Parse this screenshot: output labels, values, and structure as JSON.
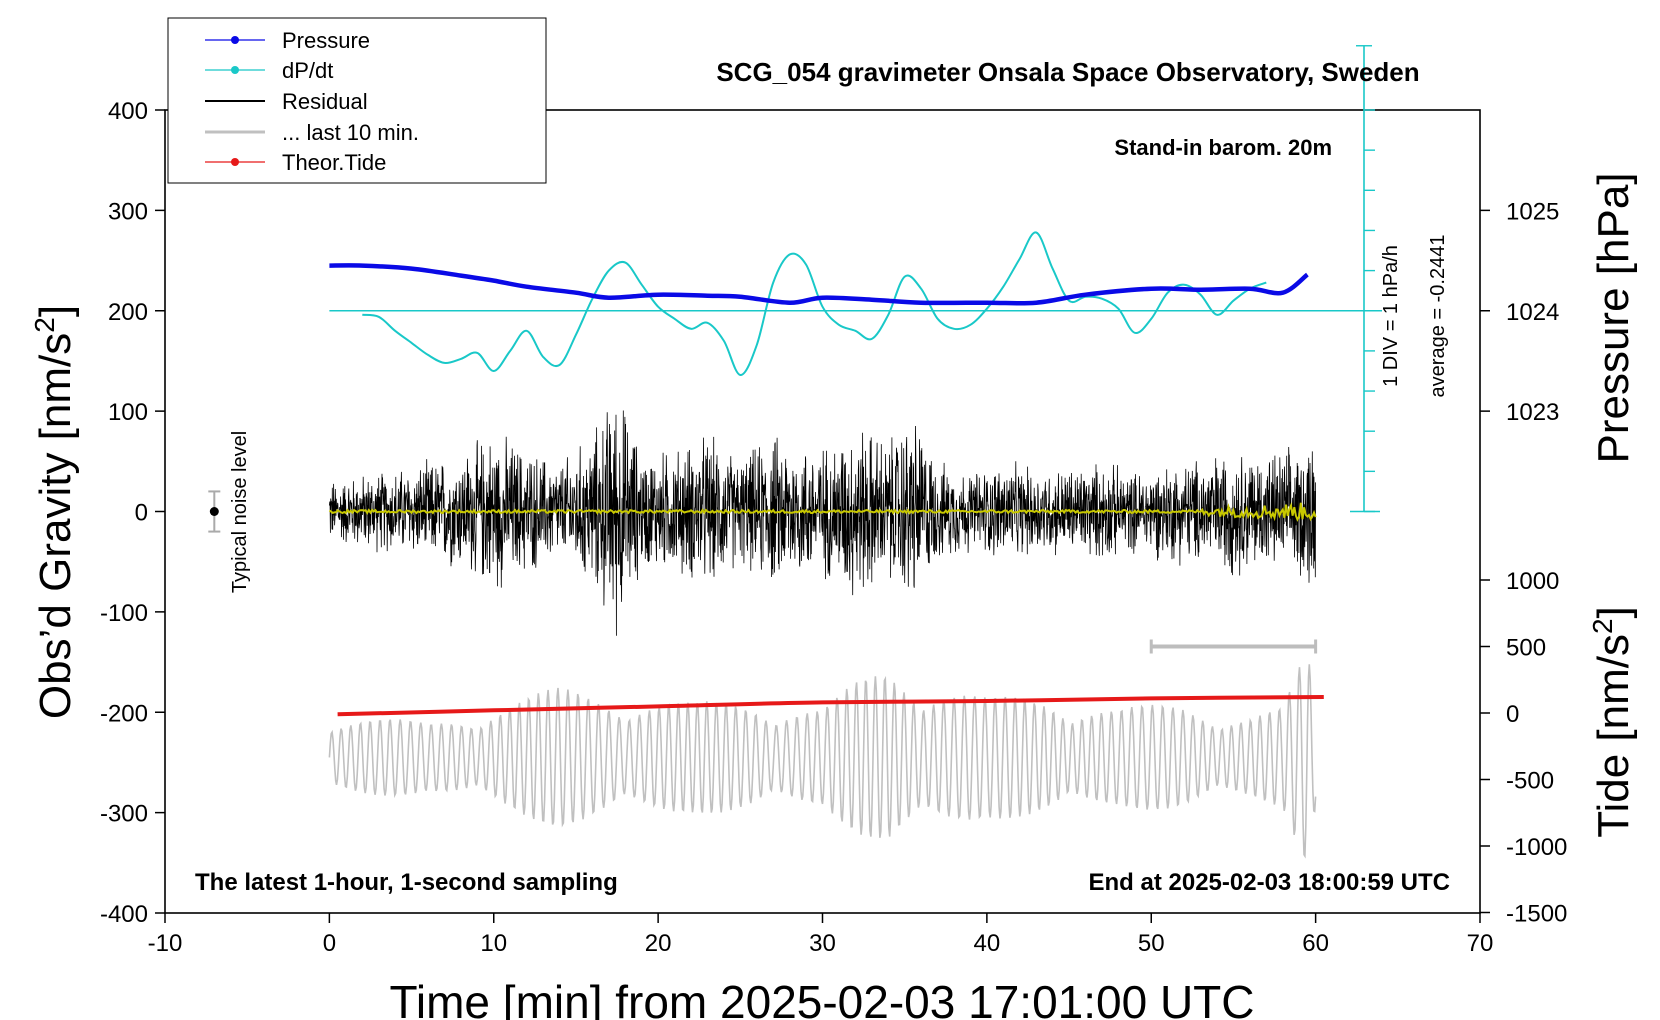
{
  "chart_data": {
    "type": "line",
    "title": "SCG_054 gravimeter Onsala Space Observatory, Sweden",
    "xlabel": "Time [min] from 2025-02-03 17:01:00 UTC",
    "ylabel_left": "Obs’d Gravity [nm/s",
    "ylabel_left_sup": "2",
    "ylabel_left_close": "]",
    "ylabel_right_pressure": "Pressure [hPa]",
    "ylabel_right_tide": "Tide [nm/s",
    "ylabel_right_tide_sup": "2",
    "ylabel_right_tide_close": "]",
    "xlim": [
      -10,
      70
    ],
    "ylim": [
      -400,
      400
    ],
    "x_ticks": [
      "-10",
      "0",
      "10",
      "20",
      "30",
      "40",
      "50",
      "60",
      "70"
    ],
    "y_ticks": [
      "400",
      "300",
      "200",
      "100",
      "0",
      "-100",
      "-200",
      "-300",
      "-400"
    ],
    "pressure_ticks": [
      "1025",
      "1024",
      "1023"
    ],
    "tide_ticks": [
      "1000",
      "500",
      "0",
      "-500",
      "-1000",
      "-1500"
    ],
    "annotations": {
      "baro": "Stand-in barom. 20m",
      "div": "1 DIV = 1 hPa/h",
      "average": "average = -0.2441",
      "noise": "Typical noise level",
      "sampling": "The latest 1-hour, 1-second sampling",
      "end": "End at 2025-02-03 18:00:59 UTC"
    },
    "legend": [
      "Pressure",
      "dP/dt",
      "Residual",
      "... last 10 min.",
      "Theor.Tide"
    ],
    "colors": {
      "pressure": "#0a0ae6",
      "dpdt": "#19c8c8",
      "residual": "#000000",
      "last10": "#c0c0c0",
      "tide": "#e61919",
      "mean": "#c8c800"
    },
    "series": {
      "pressure_hpa": {
        "x": [
          0,
          2,
          5,
          8,
          10,
          12,
          15,
          17,
          20,
          23,
          25,
          28,
          30,
          33,
          36,
          40,
          43,
          46,
          50,
          53,
          56,
          58,
          59.5
        ],
        "y": [
          1024.45,
          1024.45,
          1024.42,
          1024.35,
          1024.3,
          1024.24,
          1024.18,
          1024.13,
          1024.16,
          1024.15,
          1024.14,
          1024.08,
          1024.13,
          1024.11,
          1024.08,
          1024.08,
          1024.08,
          1024.16,
          1024.22,
          1024.21,
          1024.22,
          1024.18,
          1024.36
        ]
      },
      "dpdt_hpa_per_h": {
        "x": [
          2,
          3,
          4,
          5,
          6,
          7,
          8,
          9,
          10,
          11,
          12,
          13,
          14,
          15,
          16,
          17,
          18,
          19,
          20,
          21,
          22,
          23,
          24,
          25,
          26,
          27,
          28,
          29,
          30,
          31,
          32,
          33,
          34,
          35,
          36,
          37,
          38,
          39,
          40,
          41,
          42,
          43,
          44,
          45,
          46,
          47,
          48,
          49,
          50,
          51,
          52,
          53,
          54,
          55,
          56,
          57
        ],
        "y": [
          -0.1,
          -0.15,
          -0.5,
          -0.8,
          -1.1,
          -1.3,
          -1.2,
          -1.05,
          -1.5,
          -1.0,
          -0.5,
          -1.15,
          -1.35,
          -0.6,
          0.3,
          1.0,
          1.2,
          0.65,
          0.1,
          -0.2,
          -0.45,
          -0.3,
          -0.75,
          -1.6,
          -0.85,
          0.7,
          1.4,
          1.15,
          0.1,
          -0.35,
          -0.5,
          -0.7,
          -0.1,
          0.85,
          0.55,
          -0.2,
          -0.45,
          -0.35,
          0.05,
          0.6,
          1.3,
          1.95,
          1.05,
          0.25,
          0.35,
          0.3,
          0.05,
          -0.55,
          -0.2,
          0.45,
          0.65,
          0.4,
          -0.1,
          0.25,
          0.55,
          0.7
        ]
      },
      "residual_nm_s2": {
        "x_range": [
          0,
          60
        ],
        "envelope_x": [
          0,
          3,
          5,
          8,
          10,
          12,
          14,
          16,
          17.5,
          19,
          21,
          23,
          25,
          27,
          29,
          30.5,
          32,
          34,
          35.5,
          37,
          39,
          41,
          43,
          45,
          47,
          49,
          51,
          53,
          55,
          57,
          59,
          60
        ],
        "envelope_y": [
          35,
          45,
          50,
          65,
          90,
          70,
          55,
          85,
          140,
          65,
          70,
          85,
          60,
          85,
          75,
          75,
          100,
          80,
          110,
          55,
          45,
          55,
          48,
          50,
          55,
          45,
          55,
          60,
          70,
          65,
          70,
          100
        ]
      },
      "mean_nm_s2": {
        "x_range": [
          0,
          60
        ],
        "y_level": 0
      },
      "last10_nm_s2": {
        "x_range": [
          0,
          60
        ],
        "center": -245,
        "envelope_x": [
          0,
          6,
          10,
          14,
          18,
          22,
          26,
          30,
          32,
          34,
          36,
          40,
          44,
          48,
          52,
          56,
          58,
          59.5,
          60
        ],
        "envelope_y": [
          45,
          35,
          55,
          70,
          65,
          55,
          60,
          50,
          75,
          95,
          85,
          60,
          65,
          50,
          55,
          45,
          50,
          110,
          50
        ]
      },
      "tide_nm_s2": {
        "x": [
          0.5,
          10,
          20,
          30,
          40,
          50,
          60.5
        ],
        "y": [
          -10,
          20,
          50,
          80,
          90,
          110,
          120
        ]
      },
      "noise_bar": {
        "x": -7,
        "y": 0,
        "half_range": 20
      },
      "window_last10": {
        "x": [
          50,
          60
        ],
        "tide_level": 500
      }
    },
    "legend_placement": "top-left"
  }
}
